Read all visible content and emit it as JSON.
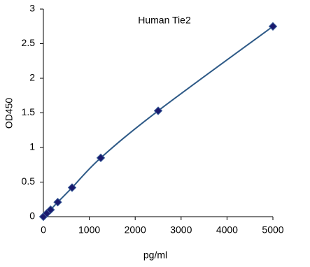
{
  "chart_data": {
    "type": "scatter",
    "title": "Human Tie2",
    "x_label": "pg/ml",
    "y_label": "OD450",
    "x": [
      0,
      78.125,
      156.25,
      312.5,
      625,
      1250,
      2500,
      5000
    ],
    "values": [
      0.0,
      0.05,
      0.1,
      0.21,
      0.42,
      0.85,
      1.53,
      2.75
    ],
    "color": "#1a1a6e",
    "line_color": "#2e5a87",
    "smooth_line": true,
    "xlim": [
      0,
      5000
    ],
    "xticks": [
      0,
      1000,
      2000,
      3000,
      4000,
      5000
    ],
    "ylim": [
      0,
      3
    ],
    "yticks": [
      0,
      0.5,
      1,
      1.5,
      2,
      2.5,
      3
    ]
  }
}
